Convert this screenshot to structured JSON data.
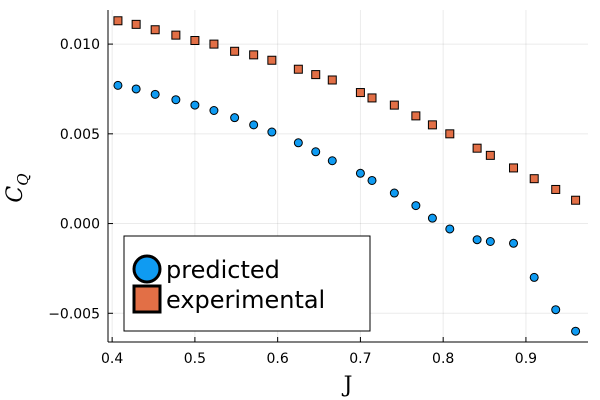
{
  "chart_data": {
    "type": "scatter",
    "xlabel": "J",
    "ylabel": "C",
    "ylabel_subscript": "Q",
    "xlim": [
      0.395,
      0.975
    ],
    "ylim": [
      -0.0066,
      0.0119
    ],
    "x_ticks": [
      0.4,
      0.5,
      0.6,
      0.7,
      0.8,
      0.9
    ],
    "x_tick_labels": [
      "0.4",
      "0.5",
      "0.6",
      "0.7",
      "0.8",
      "0.9"
    ],
    "y_ticks": [
      -0.005,
      0.0,
      0.005,
      0.01
    ],
    "y_tick_labels": [
      "−0.005",
      "0.000",
      "0.005",
      "0.010"
    ],
    "grid": true,
    "legend_position": "bottom-left",
    "series": [
      {
        "name": "predicted",
        "marker": "circle",
        "color": "#0f9bf2",
        "x": [
          0.407,
          0.429,
          0.452,
          0.477,
          0.5,
          0.523,
          0.548,
          0.571,
          0.593,
          0.625,
          0.646,
          0.666,
          0.7,
          0.714,
          0.741,
          0.767,
          0.787,
          0.808,
          0.841,
          0.857,
          0.885,
          0.91,
          0.936,
          0.96
        ],
        "y": [
          0.0077,
          0.0075,
          0.0072,
          0.0069,
          0.0066,
          0.0063,
          0.0059,
          0.0055,
          0.0051,
          0.0045,
          0.004,
          0.0035,
          0.0028,
          0.0024,
          0.0017,
          0.001,
          0.0003,
          -0.0003,
          -0.0009,
          -0.001,
          -0.0011,
          -0.003,
          -0.0048,
          -0.006
        ]
      },
      {
        "name": "experimental",
        "marker": "square",
        "color": "#e26f46",
        "x": [
          0.407,
          0.429,
          0.452,
          0.477,
          0.5,
          0.523,
          0.548,
          0.571,
          0.593,
          0.625,
          0.646,
          0.666,
          0.7,
          0.714,
          0.741,
          0.767,
          0.787,
          0.808,
          0.841,
          0.857,
          0.885,
          0.91,
          0.936,
          0.96
        ],
        "y": [
          0.0113,
          0.0111,
          0.0108,
          0.0105,
          0.0102,
          0.01,
          0.0096,
          0.0094,
          0.0091,
          0.0086,
          0.0083,
          0.008,
          0.0073,
          0.007,
          0.0066,
          0.006,
          0.0055,
          0.005,
          0.0042,
          0.0038,
          0.0031,
          0.0025,
          0.0019,
          0.0013
        ]
      }
    ]
  }
}
